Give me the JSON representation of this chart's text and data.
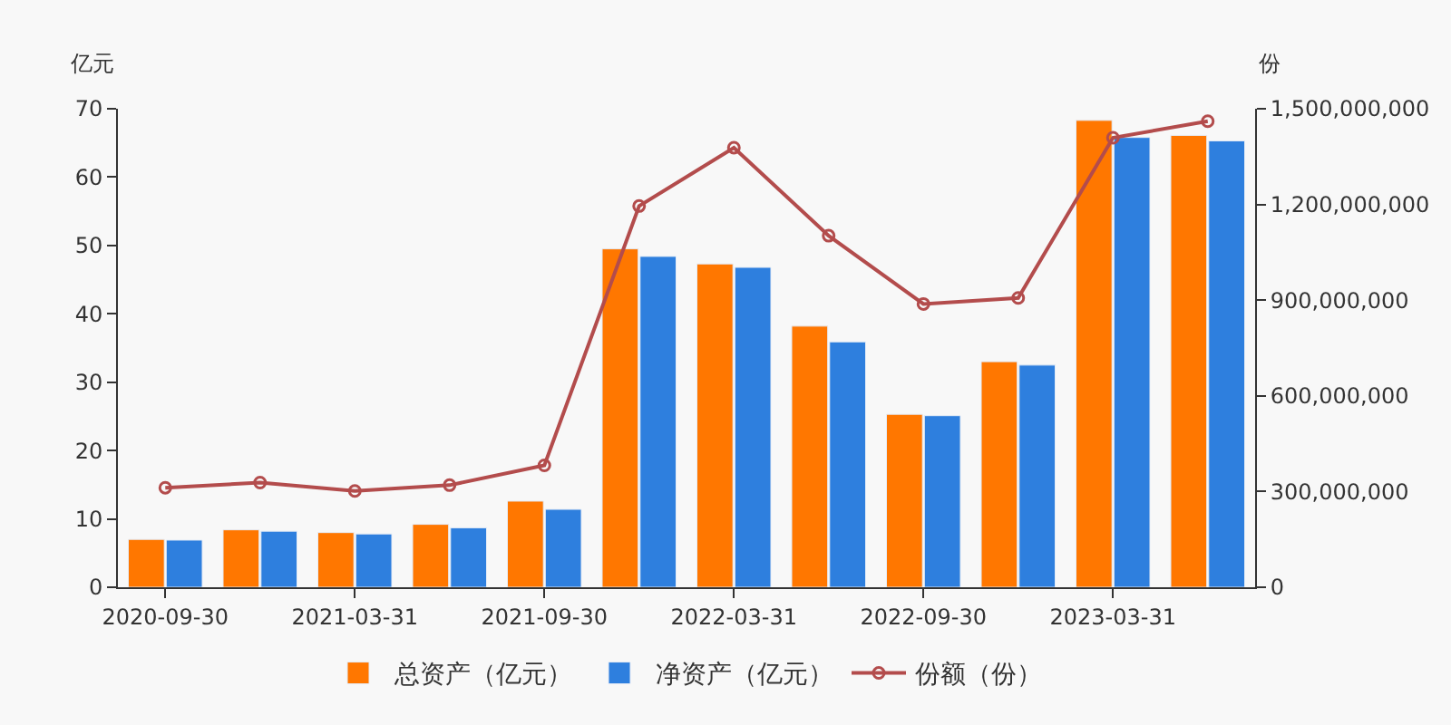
{
  "chart_data": {
    "type": "bar",
    "ylabel": "亿元",
    "y2label": "份",
    "categories": [
      "2020-09-30",
      null,
      "2021-03-31",
      null,
      "2021-09-30",
      null,
      "2022-03-31",
      null,
      "2022-09-30",
      null,
      "2023-03-31",
      null
    ],
    "series": [
      {
        "name": "总资产（亿元）",
        "color": "#ff7700",
        "values": [
          7.0,
          8.4,
          8.0,
          9.2,
          12.6,
          49.5,
          47.3,
          38.2,
          25.3,
          33.0,
          68.3,
          66.1
        ]
      },
      {
        "name": "净资产（亿元）",
        "color": "#2e7fde",
        "values": [
          6.9,
          8.2,
          7.8,
          8.7,
          11.4,
          48.4,
          46.8,
          35.9,
          25.1,
          32.5,
          65.8,
          65.3
        ]
      },
      {
        "name": "份额（份）",
        "type": "line",
        "axis": "y2",
        "color": "#b34c4c",
        "marker": "circle",
        "values": [
          312000000,
          328000000,
          302000000,
          320000000,
          382000000,
          1195000000,
          1378000000,
          1102000000,
          888000000,
          907000000,
          1409000000,
          1461000000
        ]
      }
    ],
    "ylim": [
      0,
      70
    ],
    "yticks": [
      0,
      10,
      20,
      30,
      40,
      50,
      60,
      70
    ],
    "y2lim": [
      0,
      1500000000
    ],
    "y2ticks": [
      {
        "value": 0,
        "label": "0"
      },
      {
        "value": 300000000,
        "label": "300,000,000"
      },
      {
        "value": 600000000,
        "label": "600,000,000"
      },
      {
        "value": 900000000,
        "label": "900,000,000"
      },
      {
        "value": 1200000000,
        "label": "1,200,000,000"
      },
      {
        "value": 1500000000,
        "label": "1,500,000,000"
      }
    ],
    "grid": false,
    "legend": "bottom"
  }
}
